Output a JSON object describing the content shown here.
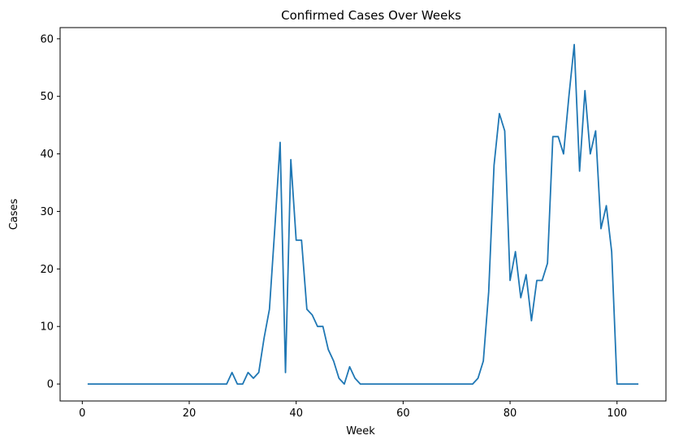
{
  "chart_data": {
    "type": "line",
    "title": "Confirmed Cases Over Weeks",
    "xlabel": "Week",
    "ylabel": "Cases",
    "xlim": [
      -4.15,
      109.15
    ],
    "ylim": [
      -2.95,
      61.95
    ],
    "xticks": [
      0,
      20,
      40,
      60,
      80,
      100
    ],
    "yticks": [
      0,
      10,
      20,
      30,
      40,
      50,
      60
    ],
    "grid": false,
    "color": "#1f77b4",
    "series": [
      {
        "x": [
          1,
          2,
          3,
          4,
          5,
          6,
          7,
          8,
          9,
          10,
          11,
          12,
          13,
          14,
          15,
          16,
          17,
          18,
          19,
          20,
          21,
          22,
          23,
          24,
          25,
          26,
          27,
          28,
          29,
          30,
          31,
          32,
          33,
          34,
          35,
          36,
          37,
          38,
          39,
          40,
          41,
          42,
          43,
          44,
          45,
          46,
          47,
          48,
          49,
          50,
          51,
          52,
          53,
          54,
          55,
          56,
          57,
          58,
          59,
          60,
          61,
          62,
          63,
          64,
          65,
          66,
          67,
          68,
          69,
          70,
          71,
          72,
          73,
          74,
          75,
          76,
          77,
          78,
          79,
          80,
          81,
          82,
          83,
          84,
          85,
          86,
          87,
          88,
          89,
          90,
          91,
          92,
          93,
          94,
          95,
          96,
          97,
          98,
          99,
          100,
          101,
          102,
          103,
          104
        ],
        "values": [
          0,
          0,
          0,
          0,
          0,
          0,
          0,
          0,
          0,
          0,
          0,
          0,
          0,
          0,
          0,
          0,
          0,
          0,
          0,
          0,
          0,
          0,
          0,
          0,
          0,
          0,
          0,
          2,
          0,
          0,
          2,
          1,
          2,
          8,
          13,
          27,
          42,
          2,
          39,
          25,
          25,
          13,
          12,
          10,
          10,
          6,
          4,
          1,
          0,
          3,
          1,
          0,
          0,
          0,
          0,
          0,
          0,
          0,
          0,
          0,
          0,
          0,
          0,
          0,
          0,
          0,
          0,
          0,
          0,
          0,
          0,
          0,
          0,
          1,
          4,
          16,
          38,
          47,
          44,
          18,
          23,
          15,
          19,
          11,
          18,
          18,
          21,
          43,
          43,
          40,
          50,
          59,
          37,
          51,
          40,
          44,
          27,
          31,
          23,
          0,
          0,
          0,
          0,
          0
        ]
      }
    ]
  }
}
